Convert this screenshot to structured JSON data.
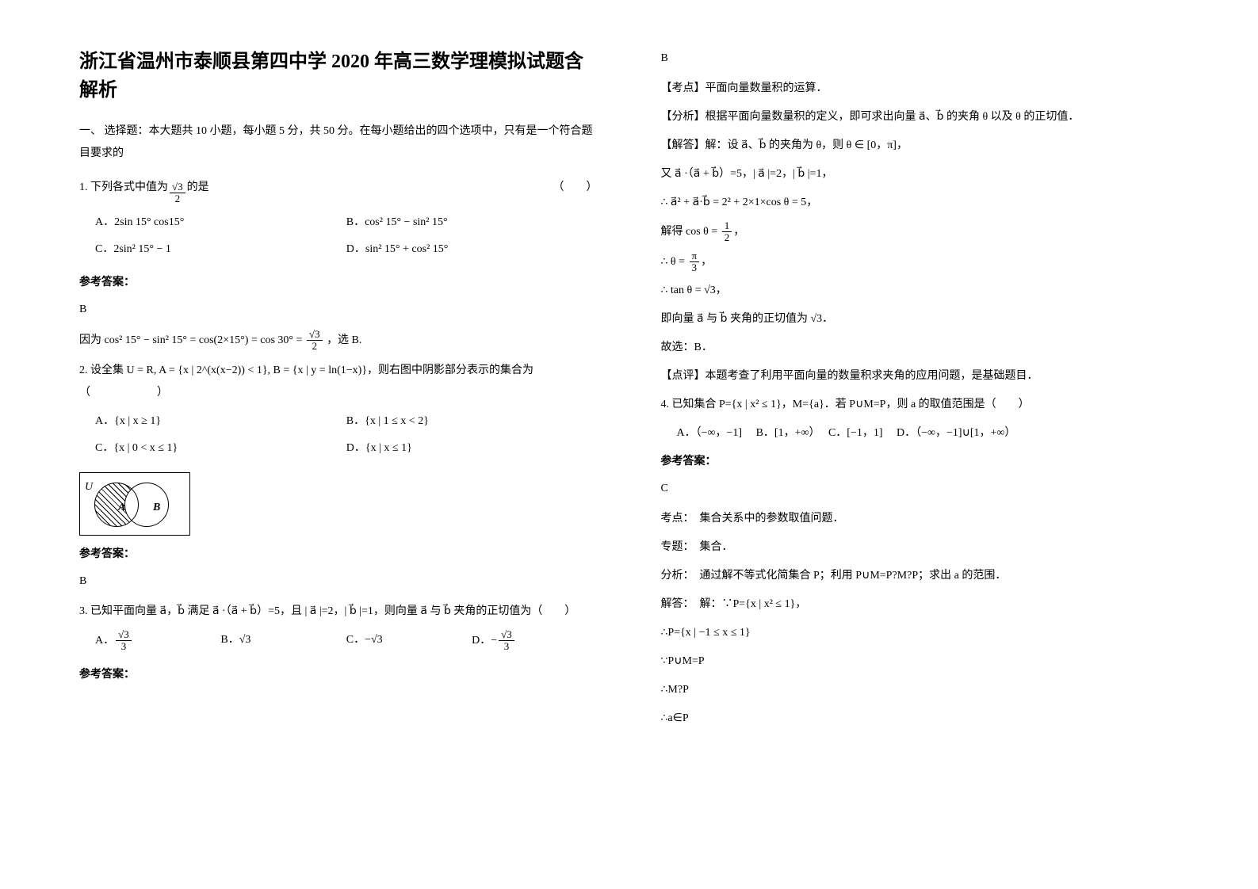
{
  "title": "浙江省温州市泰顺县第四中学 2020 年高三数学理模拟试题含解析",
  "section1_header": "一、 选择题：本大题共 10 小题，每小题 5 分，共 50 分。在每小题给出的四个选项中，只有是一个符合题目要求的",
  "q1": {
    "stem_prefix": "1. 下列各式中值为",
    "stem_suffix": "的是",
    "blank": "（　　）",
    "frac_num": "√3",
    "frac_den": "2",
    "opts": {
      "A": "2sin 15° cos15°",
      "B": "cos² 15° − sin² 15°",
      "C": "2sin² 15° − 1",
      "D": "sin² 15° + cos² 15°"
    },
    "answer_label": "参考答案：",
    "answer": "B",
    "explain_prefix": "因为",
    "explain_math": "cos² 15° − sin² 15° = cos(2×15°) = cos 30° =",
    "explain_suffix": "，选 B."
  },
  "q2": {
    "stem": "2. 设全集 U = R, A = {x | 2^(x(x−2)) < 1}, B = {x | y = ln(1−x)}，则右图中阴影部分表示的集合为",
    "blank": "（　　　　　　）",
    "opts": {
      "A": "{x | x ≥ 1}",
      "B": "{x | 1 ≤ x < 2}",
      "C": "{x | 0 < x ≤ 1}",
      "D": "{x | x ≤ 1}"
    },
    "venn": {
      "U": "U",
      "A": "A",
      "B": "B"
    },
    "answer_label": "参考答案：",
    "answer": "B"
  },
  "q3": {
    "stem": "3. 已知平面向量 a⃗，b⃗ 满足 a⃗ ·（a⃗ + b⃗）=5，且 | a⃗ |=2，| b⃗ |=1，则向量 a⃗ 与 b⃗ 夹角的正切值为（　　）",
    "opts": {
      "A_num": "√3",
      "A_den": "3",
      "B": "√3",
      "C": "−√3",
      "D_num": "√3",
      "D_den": "3",
      "D_sign": "−"
    },
    "answer_label": "参考答案："
  },
  "q3_sol": {
    "answer": "B",
    "kp_label": "【考点】",
    "kp": "平面向量数量积的运算．",
    "fx_label": "【分析】",
    "fx": "根据平面向量数量积的定义，即可求出向量 a⃗、b⃗ 的夹角 θ 以及 θ 的正切值．",
    "da_label": "【解答】",
    "s1": "解：设 a⃗、b⃗ 的夹角为 θ，则 θ ∈ [0，π]，",
    "s2": "又 a⃗ ·（a⃗ + b⃗）=5，| a⃗ |=2，| b⃗ |=1，",
    "s3": "∴ a⃗² + a⃗·b⃗ = 2² + 2×1×cos θ = 5，",
    "s4_prefix": "解得 cos θ =",
    "s4_num": "1",
    "s4_den": "2",
    "s5_prefix": "∴ θ =",
    "s5_num": "π",
    "s5_den": "3",
    "s6": "∴ tan θ = √3，",
    "s7": "即向量 a⃗ 与 b⃗ 夹角的正切值为 √3．",
    "s8": "故选：B．",
    "dp_label": "【点评】",
    "dp": "本题考查了利用平面向量的数量积求夹角的应用问题，是基础题目．"
  },
  "q4": {
    "stem": "4. 已知集合 P={x | x² ≤ 1}，M={a}．若 P∪M=P，则 a 的取值范围是（　　）",
    "opts": {
      "A": "（−∞，−1]",
      "B": "[1，+∞）",
      "C": "[−1，1]",
      "D": "（−∞，−1]∪[1，+∞）"
    },
    "answer_label": "参考答案：",
    "answer": "C",
    "kd_label": "考点：",
    "kd": "集合关系中的参数取值问题．",
    "zt_label": "专题：",
    "zt": "集合．",
    "fx_label": "分析：",
    "fx": "通过解不等式化简集合 P；利用 P∪M=P?M?P；求出 a 的范围．",
    "da_label": "解答：",
    "s1": "解：∵P={x | x² ≤ 1}，",
    "s2": "∴P={x | −1 ≤ x ≤ 1}",
    "s3": "∵P∪M=P",
    "s4": "∴M?P",
    "s5": "∴a∈P"
  },
  "colors": {
    "text": "#000000",
    "bg": "#ffffff"
  },
  "fonts": {
    "body_size": 14,
    "title_size": 24
  }
}
